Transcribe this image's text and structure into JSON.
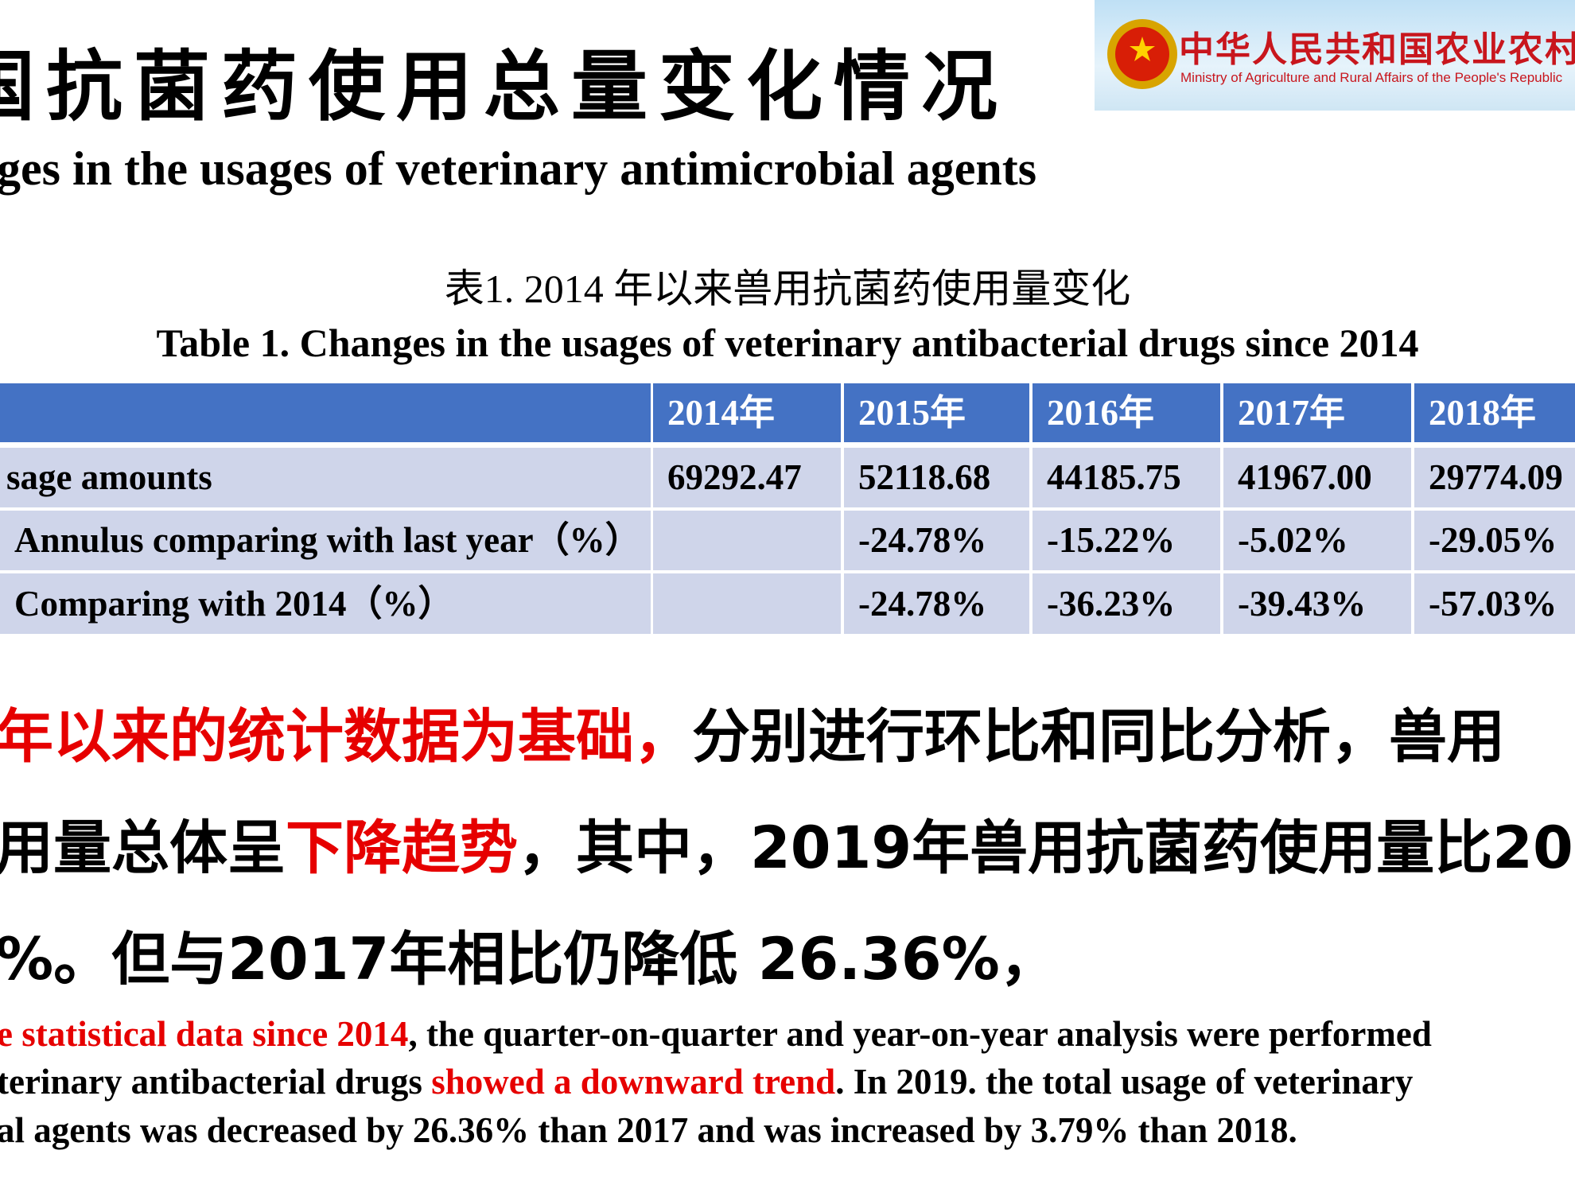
{
  "header": {
    "title": "国抗菌药使用总量变化情况",
    "subtitle": "ges in the usages of veterinary antimicrobial agents",
    "logo": {
      "name": "中华人民共和国农业农村",
      "subname": "Ministry of Agriculture and Rural Affairs of the People's Republic"
    }
  },
  "table": {
    "caption": "表1. 2014 年以来兽用抗菌药使用量变化",
    "caption_en": "Table 1. Changes in the usages of veterinary antibacterial drugs since 2014",
    "header": [
      null,
      "2014年",
      "2015年",
      "2016年",
      "2017年",
      "2018年"
    ],
    "rows": [
      [
        "sage amounts",
        "69292.47",
        "52118.68",
        "44185.75",
        "41967.00",
        "29774.09"
      ],
      [
        "Annulus comparing with last year（%）",
        null,
        "-24.78%",
        "-15.22%",
        "-5.02%",
        "-29.05%"
      ],
      [
        "Comparing with 2014（%）",
        null,
        "-24.78%",
        "-36.23%",
        "-39.43%",
        "-57.03%"
      ]
    ]
  },
  "paragraph": [
    [
      {
        "text": "年以来的统计数据为基础，",
        "emphasis": true
      },
      {
        "text": "分别进行环比和同比分析，兽用",
        "emphasis": false
      }
    ],
    [
      {
        "text": "用量总体呈",
        "emphasis": false
      },
      {
        "text": "下降趋势",
        "emphasis": true
      },
      {
        "text": "，其中，2019年兽用抗菌药使用量比20",
        "emphasis": false
      }
    ],
    [
      {
        "text": "%。但与2017年相比仍降低 26.36%，",
        "emphasis": false
      }
    ]
  ],
  "paragraph_en": [
    [
      {
        "text": "e statistical data since 2014",
        "emphasis": true
      },
      {
        "text": ", the quarter-on-quarter and year-on-year analysis were performed",
        "emphasis": false
      }
    ],
    [
      {
        "text": "terinary antibacterial drugs ",
        "emphasis": false
      },
      {
        "text": "showed a downward trend",
        "emphasis": true
      },
      {
        "text": ". In 2019. the total usage of veterinary",
        "emphasis": false
      }
    ],
    [
      {
        "text": "al agents was decreased by 26.36% than 2017 and was increased by 3.79% than 2018.",
        "emphasis": false
      }
    ]
  ]
}
